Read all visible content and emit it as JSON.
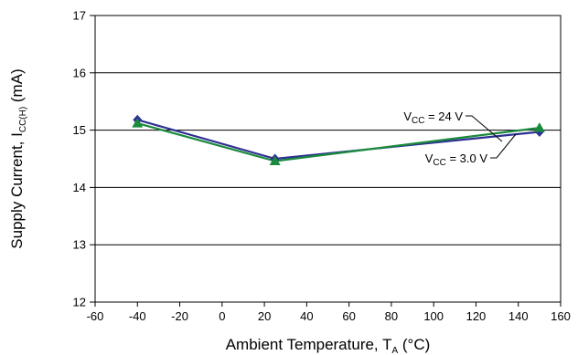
{
  "chart_data": {
    "type": "line",
    "xlabel": {
      "base": "Ambient Temperature, T",
      "sub": "A",
      "suffix": " (°C)"
    },
    "ylabel": {
      "base": "Supply Current, I",
      "sub": "CC(H)",
      "suffix": " (mA)"
    },
    "xlim": [
      -60,
      160
    ],
    "ylim": [
      12,
      17
    ],
    "x_ticks": [
      "-60",
      "-40",
      "-20",
      "0",
      "20",
      "40",
      "60",
      "80",
      "100",
      "120",
      "140",
      "160"
    ],
    "y_ticks": [
      "12",
      "13",
      "14",
      "15",
      "16",
      "17"
    ],
    "grid": "horizontal",
    "series": [
      {
        "name": "VCC = 24 V",
        "label": {
          "pre": "V",
          "sub": "CC",
          "post": " = 24 V"
        },
        "color": "#2e3192",
        "marker": "diamond",
        "x": [
          -40,
          25,
          150
        ],
        "y": [
          15.18,
          14.5,
          14.97
        ]
      },
      {
        "name": "VCC = 3.0 V",
        "label": {
          "pre": "V",
          "sub": "CC",
          "post": " = 3.0 V"
        },
        "color": "#1a8a3c",
        "marker": "triangle",
        "x": [
          -40,
          25,
          150
        ],
        "y": [
          15.12,
          14.46,
          15.04
        ]
      }
    ]
  }
}
